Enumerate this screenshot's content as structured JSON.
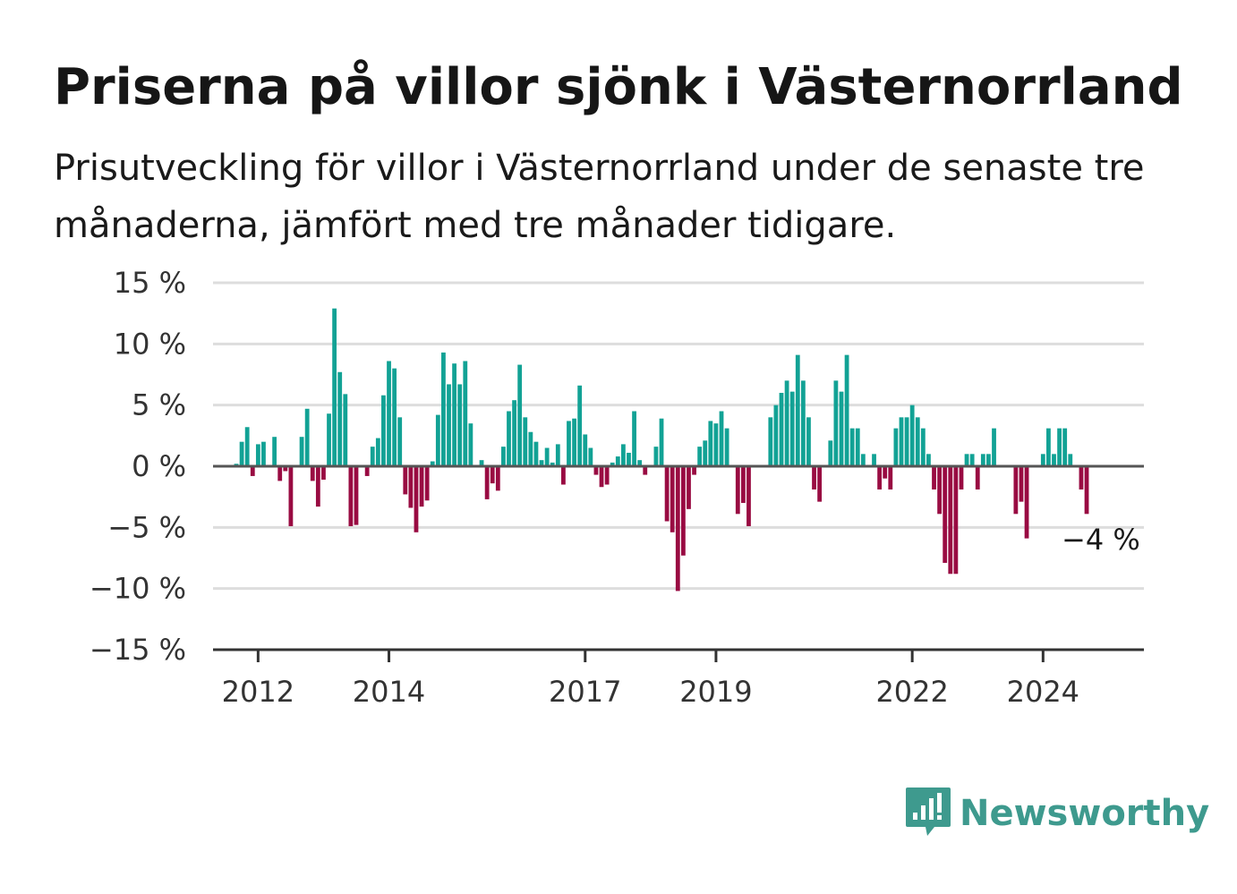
{
  "title": "Priserna på villor sjönk i Västernorrland",
  "subtitle": "Prisutveckling för villor i Västernorrland under de senaste tre månaderna, jämfört med tre månader tidigare.",
  "brand": {
    "name": "Newsworthy",
    "icon": "newsworthy-logo-icon",
    "color": "#3e9a8e"
  },
  "chart_data": {
    "type": "bar",
    "x_start": "2011-09",
    "x_step": "month",
    "ylim": [
      -15,
      15
    ],
    "y_ticks": [
      15,
      10,
      5,
      0,
      -5,
      -10,
      -15
    ],
    "y_tick_labels": [
      "15 %",
      "10 %",
      "5 %",
      "0 %",
      "−5 %",
      "−10 %",
      "−15 %"
    ],
    "x_ticks": [
      {
        "label": "2012",
        "month_index": 4
      },
      {
        "label": "2014",
        "month_index": 28
      },
      {
        "label": "2017",
        "month_index": 64
      },
      {
        "label": "2019",
        "month_index": 88
      },
      {
        "label": "2022",
        "month_index": 124
      },
      {
        "label": "2024",
        "month_index": 148
      }
    ],
    "grid": true,
    "colors": {
      "positive": "#12a295",
      "negative": "#990b42",
      "grid": "#dddddd",
      "zero": "#555555"
    },
    "annotation": {
      "text": "−4 %"
    },
    "values": [
      0.2,
      2.0,
      3.2,
      -0.8,
      1.8,
      2.0,
      0,
      2.4,
      -1.2,
      -0.4,
      -4.9,
      0,
      2.4,
      4.7,
      -1.2,
      -3.3,
      -1.1,
      4.3,
      12.9,
      7.7,
      5.9,
      -4.9,
      -4.8,
      0,
      -0.8,
      1.6,
      2.3,
      5.8,
      8.6,
      8.0,
      4.0,
      -2.3,
      -3.4,
      -5.4,
      -3.3,
      -2.8,
      0.4,
      4.2,
      9.3,
      6.7,
      8.4,
      6.7,
      8.6,
      3.5,
      0,
      0.5,
      -2.7,
      -1.4,
      -2.0,
      1.6,
      4.5,
      5.4,
      8.3,
      4.0,
      2.8,
      2.0,
      0.5,
      1.5,
      0.3,
      1.8,
      -1.5,
      3.7,
      3.9,
      6.6,
      2.6,
      1.5,
      -0.7,
      -1.7,
      -1.5,
      0.3,
      0.8,
      1.8,
      1.1,
      4.5,
      0.5,
      -0.7,
      0,
      1.6,
      3.9,
      -4.5,
      -5.4,
      -10.2,
      -7.3,
      -3.5,
      -0.7,
      1.6,
      2.1,
      3.7,
      3.5,
      4.5,
      3.1,
      0,
      -3.9,
      -3.0,
      -4.9,
      0,
      0,
      0,
      4.0,
      5.0,
      6.0,
      7.0,
      6.1,
      9.1,
      7.0,
      4.0,
      -1.9,
      -2.9,
      0,
      2.1,
      7.0,
      6.1,
      9.1,
      3.1,
      3.1,
      1.0,
      0,
      1.0,
      -1.9,
      -1.0,
      -1.9,
      3.1,
      4.0,
      4.0,
      5.0,
      4.0,
      3.1,
      1.0,
      -1.9,
      -3.9,
      -7.9,
      -8.8,
      -8.8,
      -1.9,
      1.0,
      1.0,
      -1.9,
      1.0,
      1.0,
      3.1,
      0,
      0,
      0,
      -3.9,
      -2.9,
      -5.9,
      0,
      0,
      1.0,
      3.1,
      1.0,
      3.1,
      3.1,
      1.0,
      0,
      -1.9,
      -3.9
    ]
  }
}
